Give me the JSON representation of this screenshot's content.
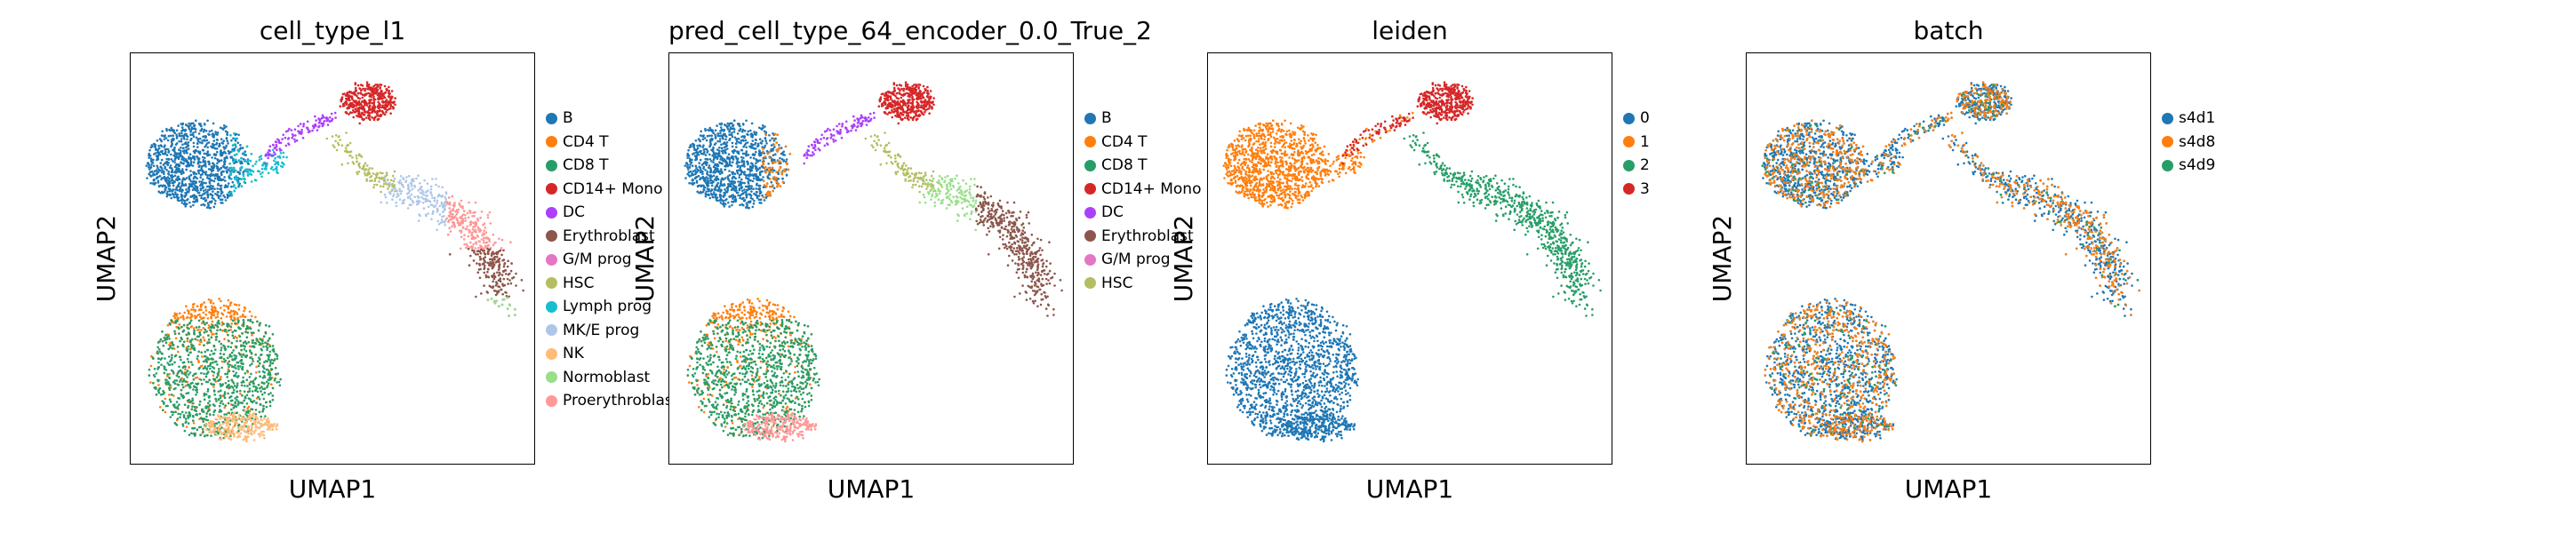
{
  "panels": [
    {
      "title": "cell_type_l1",
      "xlabel": "UMAP1",
      "ylabel": "UMAP2",
      "legend": [
        {
          "label": "B",
          "color": "#1f77b4"
        },
        {
          "label": "CD4 T",
          "color": "#ff7f0e"
        },
        {
          "label": "CD8 T",
          "color": "#279e68"
        },
        {
          "label": "CD14+ Mono",
          "color": "#d62728"
        },
        {
          "label": "DC",
          "color": "#aa40fc"
        },
        {
          "label": "Erythroblast",
          "color": "#8c564b"
        },
        {
          "label": "G/M prog",
          "color": "#e377c2"
        },
        {
          "label": "HSC",
          "color": "#b5bd61"
        },
        {
          "label": "Lymph prog",
          "color": "#17becf"
        },
        {
          "label": "MK/E prog",
          "color": "#aec7e8"
        },
        {
          "label": "NK",
          "color": "#ffbb78"
        },
        {
          "label": "Normoblast",
          "color": "#98df8a"
        },
        {
          "label": "Proerythroblast",
          "color": "#ff9896"
        }
      ]
    },
    {
      "title": "pred_cell_type_64_encoder_0.0_True_2",
      "xlabel": "UMAP1",
      "ylabel": "UMAP2",
      "legend": [
        {
          "label": "B",
          "color": "#1f77b4"
        },
        {
          "label": "CD4 T",
          "color": "#ff7f0e"
        },
        {
          "label": "CD8 T",
          "color": "#279e68"
        },
        {
          "label": "CD14+ Mono",
          "color": "#d62728"
        },
        {
          "label": "DC",
          "color": "#aa40fc"
        },
        {
          "label": "Erythroblast",
          "color": "#8c564b"
        },
        {
          "label": "G/M prog",
          "color": "#e377c2"
        },
        {
          "label": "HSC",
          "color": "#b5bd61"
        }
      ]
    },
    {
      "title": "leiden",
      "xlabel": "UMAP1",
      "ylabel": "UMAP2",
      "legend": [
        {
          "label": "0",
          "color": "#1f77b4"
        },
        {
          "label": "1",
          "color": "#ff7f0e"
        },
        {
          "label": "2",
          "color": "#279e68"
        },
        {
          "label": "3",
          "color": "#d62728"
        }
      ]
    },
    {
      "title": "batch",
      "xlabel": "UMAP1",
      "ylabel": "UMAP2",
      "legend": [
        {
          "label": "s4d1",
          "color": "#1f77b4"
        },
        {
          "label": "s4d8",
          "color": "#ff7f0e"
        },
        {
          "label": "s4d9",
          "color": "#279e68"
        }
      ]
    }
  ],
  "chart_data": [
    {
      "type": "scatter",
      "title": "cell_type_l1",
      "xlabel": "UMAP1",
      "ylabel": "UMAP2",
      "series": [
        {
          "name": "B"
        },
        {
          "name": "CD4 T"
        },
        {
          "name": "CD8 T"
        },
        {
          "name": "CD14+ Mono"
        },
        {
          "name": "DC"
        },
        {
          "name": "Erythroblast"
        },
        {
          "name": "G/M prog"
        },
        {
          "name": "HSC"
        },
        {
          "name": "Lymph prog"
        },
        {
          "name": "MK/E prog"
        },
        {
          "name": "NK"
        },
        {
          "name": "Normoblast"
        },
        {
          "name": "Proerythroblast"
        }
      ],
      "legend": "right",
      "grid": false
    },
    {
      "type": "scatter",
      "title": "pred_cell_type_64_encoder_0.0_True_2",
      "xlabel": "UMAP1",
      "ylabel": "UMAP2",
      "series": [
        {
          "name": "B"
        },
        {
          "name": "CD4 T"
        },
        {
          "name": "CD8 T"
        },
        {
          "name": "CD14+ Mono"
        },
        {
          "name": "DC"
        },
        {
          "name": "Erythroblast"
        },
        {
          "name": "G/M prog"
        },
        {
          "name": "HSC"
        }
      ],
      "legend": "right",
      "grid": false
    },
    {
      "type": "scatter",
      "title": "leiden",
      "xlabel": "UMAP1",
      "ylabel": "UMAP2",
      "series": [
        {
          "name": "0"
        },
        {
          "name": "1"
        },
        {
          "name": "2"
        },
        {
          "name": "3"
        }
      ],
      "legend": "right",
      "grid": false
    },
    {
      "type": "scatter",
      "title": "batch",
      "xlabel": "UMAP1",
      "ylabel": "UMAP2",
      "series": [
        {
          "name": "s4d1"
        },
        {
          "name": "s4d8"
        },
        {
          "name": "s4d9"
        }
      ],
      "legend": "right",
      "grid": false
    }
  ]
}
